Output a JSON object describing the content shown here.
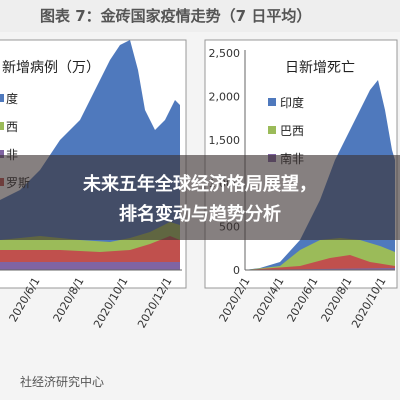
{
  "header": {
    "title": "图表 7：金砖国家疫情走势（7 日平均）"
  },
  "left_chart": {
    "title": "新增病例（万）",
    "legend": [
      "度",
      "西",
      "非",
      "罗斯"
    ],
    "x_labels": [
      "2020/6/1",
      "2020/8/1",
      "2020/10/1",
      "2020/12/1"
    ]
  },
  "right_chart": {
    "title": "日新增死亡",
    "y_labels": [
      "2,500",
      "2,000",
      "1,500",
      "1,000",
      "500",
      "0"
    ],
    "legend": [
      "印度",
      "巴西",
      "南非"
    ],
    "x_labels": [
      "2020/2/1",
      "2020/4/1",
      "2020/6/1",
      "2020/8/1",
      "2020/10/1"
    ]
  },
  "banner": {
    "lines": [
      "未来五年全球经济格局展望，",
      "排名变动与趋势分析"
    ]
  },
  "footer": {
    "source": "社经济研究中心"
  }
}
